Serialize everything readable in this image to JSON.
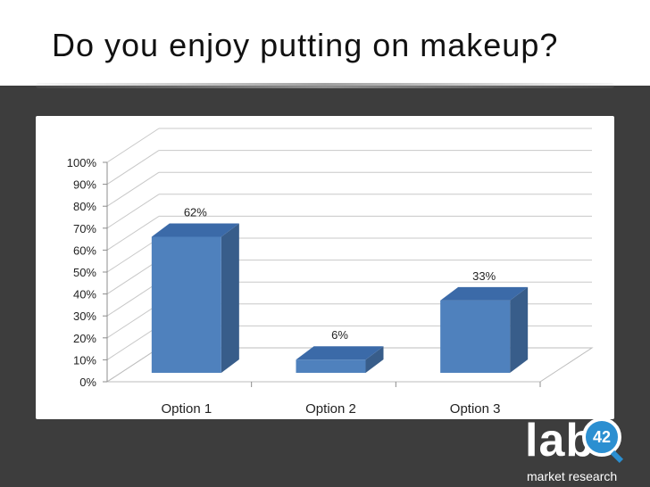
{
  "slide": {
    "title": "Do you enjoy putting on makeup?"
  },
  "logo": {
    "word": "lab",
    "badge": "42",
    "subtitle": "market research"
  },
  "colors": {
    "background": "#3d3d3d",
    "bar_front": "#4f81bd",
    "bar_side": "#385d8a",
    "bar_top": "#3b6aa8",
    "logo_accent": "#2b8fd1"
  },
  "chart_data": {
    "type": "bar",
    "categories": [
      "Option 1",
      "Option 2",
      "Option 3"
    ],
    "values": [
      62,
      6,
      33
    ],
    "data_labels": [
      "62%",
      "6%",
      "33%"
    ],
    "ylim": [
      0,
      100
    ],
    "y_ticks": [
      "0%",
      "10%",
      "20%",
      "30%",
      "40%",
      "50%",
      "60%",
      "70%",
      "80%",
      "90%",
      "100%"
    ],
    "grid": true,
    "style": "3d-column"
  }
}
